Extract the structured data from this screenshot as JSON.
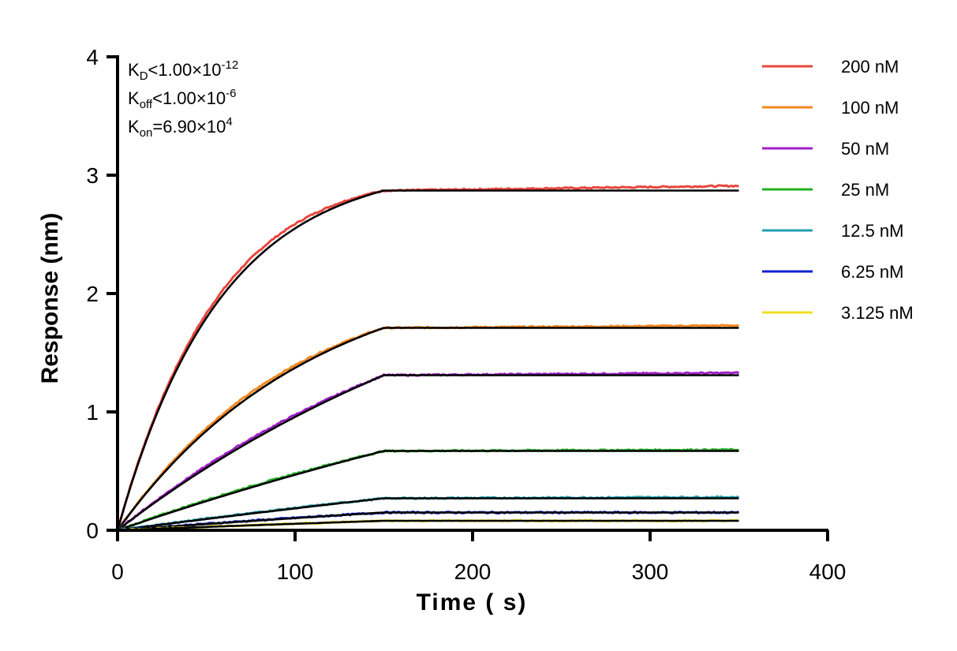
{
  "chart_data": {
    "type": "line",
    "xlabel": "Time ( s)",
    "ylabel": "Response (nm)",
    "xlim": [
      0,
      400
    ],
    "ylim": [
      0,
      4
    ],
    "xticks": [
      "0",
      "100",
      "200",
      "300",
      "400"
    ],
    "yticks": [
      "0",
      "1",
      "2",
      "3",
      "4"
    ],
    "grid": false,
    "legend_position": "top-right",
    "association_end": 150,
    "end_time": 350,
    "kinetics": {
      "kd": {
        "k": "K",
        "sub": "D",
        "rel": "<1.00×10",
        "sup": "-12"
      },
      "koff": {
        "k": "K",
        "sub": "off",
        "rel": "<1.00×10",
        "sup": "-6"
      },
      "kon": {
        "k": "K",
        "sub": "on",
        "rel": "=6.90×10",
        "sup": "4"
      }
    },
    "fit_color": "#000000",
    "series": [
      {
        "name": "200 nM",
        "color": "#E8463C",
        "plateau": 2.87,
        "final": 2.91,
        "tau": 58
      },
      {
        "name": "100 nM",
        "color": "#F5881F",
        "plateau": 1.71,
        "final": 1.73,
        "tau": 110
      },
      {
        "name": "50 nM",
        "color": "#A020C8",
        "plateau": 1.31,
        "final": 1.33,
        "tau": 250
      },
      {
        "name": "25 nM",
        "color": "#22B022",
        "plateau": 0.67,
        "final": 0.68,
        "tau": 500
      },
      {
        "name": "12.5 nM",
        "color": "#20A0B0",
        "plateau": 0.27,
        "final": 0.28,
        "tau": 900
      },
      {
        "name": "6.25 nM",
        "color": "#1020D0",
        "plateau": 0.15,
        "final": 0.15,
        "tau": 900
      },
      {
        "name": "3.125 nM",
        "color": "#F0E020",
        "plateau": 0.08,
        "final": 0.08,
        "tau": 900
      }
    ]
  }
}
